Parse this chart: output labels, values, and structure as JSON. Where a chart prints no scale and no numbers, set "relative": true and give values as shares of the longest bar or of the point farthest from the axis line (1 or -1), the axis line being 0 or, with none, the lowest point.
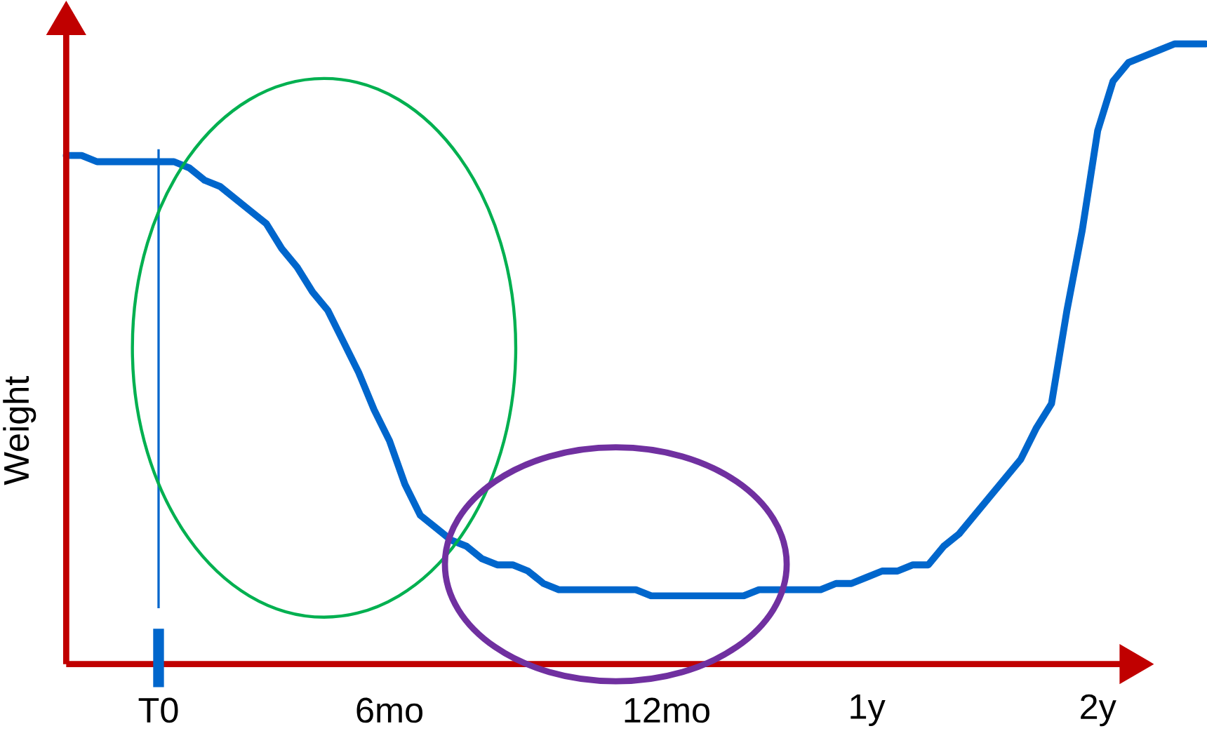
{
  "chart_data": {
    "type": "line",
    "relative": true,
    "ylabel": "Weight",
    "color": "#0066cc",
    "categories": [
      null,
      null,
      null,
      null,
      null,
      null,
      "T0",
      null,
      null,
      null,
      null,
      null,
      null,
      null,
      null,
      null,
      null,
      null,
      null,
      null,
      null,
      "6mo",
      null,
      null,
      null,
      null,
      null,
      null,
      null,
      null,
      null,
      null,
      null,
      null,
      null,
      null,
      null,
      null,
      null,
      "12mo",
      null,
      null,
      null,
      null,
      null,
      null,
      null,
      null,
      null,
      null,
      null,
      null,
      "1y",
      null,
      null,
      null,
      null,
      null,
      null,
      null,
      null,
      null,
      null,
      null,
      null,
      null,
      null,
      "2y",
      null,
      null,
      null,
      null,
      null,
      null,
      null
    ],
    "values": [
      0.82,
      0.82,
      0.81,
      0.81,
      0.81,
      0.81,
      0.81,
      0.81,
      0.8,
      0.78,
      0.77,
      0.75,
      0.73,
      0.71,
      0.67,
      0.64,
      0.6,
      0.57,
      0.52,
      0.47,
      0.41,
      0.36,
      0.29,
      0.24,
      0.22,
      0.2,
      0.19,
      0.17,
      0.16,
      0.16,
      0.15,
      0.13,
      0.12,
      0.12,
      0.12,
      0.12,
      0.12,
      0.12,
      0.11,
      0.11,
      0.11,
      0.11,
      0.11,
      0.11,
      0.11,
      0.12,
      0.12,
      0.12,
      0.12,
      0.12,
      0.13,
      0.13,
      0.14,
      0.15,
      0.15,
      0.16,
      0.16,
      0.19,
      0.21,
      0.24,
      0.27,
      0.3,
      0.33,
      0.38,
      0.42,
      0.57,
      0.7,
      0.86,
      0.94,
      0.97,
      0.98,
      0.99,
      1.0,
      1.0,
      1.0
    ],
    "ref_lines": [
      {
        "axis": "x",
        "value": "T0",
        "color": "#0066cc"
      }
    ]
  }
}
